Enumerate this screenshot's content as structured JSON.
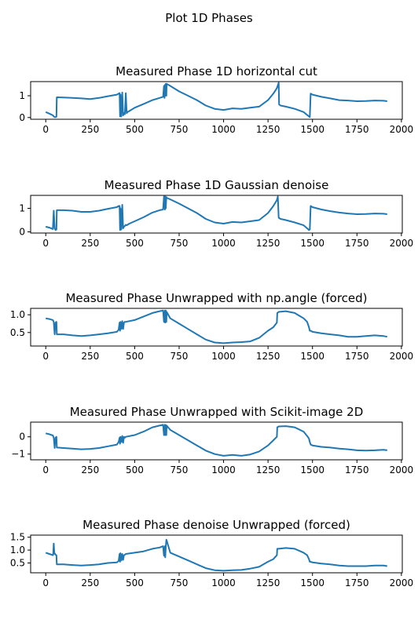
{
  "figure": {
    "suptitle": "Plot 1D Phases"
  },
  "style": {
    "line_color": "#1f77b4",
    "axis_color": "#000000",
    "background": "#ffffff"
  },
  "chart_data": [
    {
      "type": "line",
      "title": "Measured Phase 1D horizontal cut",
      "xlabel": "",
      "ylabel": "",
      "xlim": [
        -85,
        2005
      ],
      "ylim": [
        -0.08,
        1.65
      ],
      "xticks": [
        0,
        250,
        500,
        750,
        1000,
        1250,
        1500,
        1750,
        2000
      ],
      "yticks": [
        0,
        1
      ],
      "series": [
        {
          "x": [
            0,
            20,
            40,
            45,
            50,
            55,
            60,
            62,
            65,
            100,
            150,
            200,
            250,
            300,
            350,
            400,
            410,
            415,
            418,
            420,
            425,
            430,
            435,
            440,
            445,
            450,
            455,
            460,
            470,
            500,
            550,
            600,
            640,
            660,
            665,
            668,
            670,
            672,
            675,
            678,
            680,
            700,
            750,
            800,
            850,
            900,
            950,
            1000,
            1050,
            1100,
            1150,
            1200,
            1250,
            1280,
            1300,
            1310,
            1312,
            1320,
            1350,
            1400,
            1450,
            1470,
            1480,
            1485,
            1490,
            1500,
            1550,
            1600,
            1650,
            1700,
            1750,
            1800,
            1850,
            1900,
            1920
          ],
          "y": [
            0.25,
            0.18,
            0.1,
            0.05,
            0.02,
            0.02,
            0.03,
            0.93,
            0.93,
            0.92,
            0.9,
            0.88,
            0.85,
            0.9,
            0.98,
            1.05,
            1.1,
            1.12,
            0.05,
            1.05,
            0.05,
            1.15,
            0.1,
            0.2,
            0.15,
            1.12,
            0.2,
            0.25,
            0.3,
            0.45,
            0.62,
            0.8,
            0.9,
            0.95,
            1.45,
            0.9,
            1.5,
            1.0,
            1.55,
            1.0,
            1.55,
            1.45,
            1.2,
            1.0,
            0.8,
            0.55,
            0.4,
            0.35,
            0.42,
            0.4,
            0.45,
            0.5,
            0.8,
            1.1,
            1.35,
            1.6,
            0.6,
            0.55,
            0.5,
            0.4,
            0.25,
            0.12,
            0.05,
            0.02,
            1.1,
            1.05,
            0.95,
            0.88,
            0.8,
            0.78,
            0.75,
            0.76,
            0.78,
            0.77,
            0.75
          ]
        }
      ]
    },
    {
      "type": "line",
      "title": "Measured Phase 1D Gaussian denoise",
      "xlabel": "",
      "ylabel": "",
      "xlim": [
        -85,
        2005
      ],
      "ylim": [
        -0.05,
        1.55
      ],
      "xticks": [
        0,
        250,
        500,
        750,
        1000,
        1250,
        1500,
        1750,
        2000
      ],
      "yticks": [
        0,
        1
      ],
      "series": [
        {
          "x": [
            0,
            20,
            40,
            45,
            50,
            55,
            60,
            62,
            65,
            100,
            150,
            200,
            250,
            300,
            350,
            400,
            410,
            415,
            418,
            420,
            425,
            430,
            435,
            440,
            445,
            450,
            455,
            460,
            470,
            500,
            550,
            600,
            640,
            660,
            665,
            670,
            672,
            675,
            678,
            680,
            700,
            750,
            800,
            850,
            900,
            950,
            1000,
            1050,
            1100,
            1150,
            1200,
            1250,
            1280,
            1300,
            1305,
            1310,
            1320,
            1350,
            1400,
            1450,
            1470,
            1480,
            1485,
            1490,
            1500,
            1550,
            1600,
            1650,
            1700,
            1750,
            1800,
            1850,
            1900,
            1920
          ],
          "y": [
            0.22,
            0.18,
            0.12,
            0.9,
            0.15,
            0.08,
            0.1,
            0.92,
            0.92,
            0.92,
            0.9,
            0.85,
            0.85,
            0.9,
            0.98,
            1.05,
            1.1,
            1.1,
            0.08,
            1.0,
            0.1,
            1.15,
            0.15,
            0.22,
            0.25,
            0.3,
            0.28,
            0.3,
            0.35,
            0.45,
            0.62,
            0.82,
            0.92,
            0.95,
            1.5,
            0.95,
            1.5,
            1.0,
            1.48,
            1.45,
            1.38,
            1.2,
            1.0,
            0.8,
            0.55,
            0.4,
            0.35,
            0.42,
            0.4,
            0.45,
            0.5,
            0.8,
            1.1,
            1.35,
            1.5,
            0.6,
            0.55,
            0.5,
            0.4,
            0.28,
            0.15,
            0.08,
            0.1,
            1.1,
            1.05,
            0.95,
            0.88,
            0.82,
            0.78,
            0.75,
            0.76,
            0.78,
            0.77,
            0.75
          ]
        }
      ]
    },
    {
      "type": "line",
      "title": "Measured Phase Unwrapped with np.angle (forced)",
      "xlabel": "",
      "ylabel": "",
      "xlim": [
        -85,
        2005
      ],
      "ylim": [
        0.12,
        1.18
      ],
      "xticks": [
        0,
        250,
        500,
        750,
        1000,
        1250,
        1500,
        1750,
        2000
      ],
      "yticks": [
        0.5,
        1.0
      ],
      "series": [
        {
          "x": [
            0,
            20,
            40,
            45,
            50,
            55,
            60,
            62,
            65,
            100,
            150,
            200,
            250,
            300,
            350,
            400,
            410,
            415,
            418,
            420,
            425,
            430,
            435,
            440,
            445,
            450,
            500,
            550,
            600,
            640,
            660,
            665,
            670,
            672,
            675,
            678,
            680,
            700,
            750,
            800,
            850,
            900,
            950,
            1000,
            1050,
            1100,
            1150,
            1200,
            1250,
            1280,
            1300,
            1302,
            1310,
            1350,
            1400,
            1450,
            1470,
            1480,
            1485,
            1490,
            1500,
            1550,
            1600,
            1650,
            1700,
            1750,
            1800,
            1850,
            1900,
            1920
          ],
          "y": [
            0.9,
            0.88,
            0.85,
            0.8,
            0.45,
            0.78,
            0.8,
            0.45,
            0.45,
            0.45,
            0.42,
            0.4,
            0.42,
            0.45,
            0.48,
            0.52,
            0.58,
            0.78,
            0.55,
            0.8,
            0.6,
            0.82,
            0.6,
            0.78,
            0.8,
            0.8,
            0.85,
            0.95,
            1.05,
            1.1,
            1.12,
            0.8,
            1.12,
            0.78,
            1.12,
            0.8,
            1.08,
            0.9,
            0.75,
            0.6,
            0.45,
            0.3,
            0.22,
            0.2,
            0.22,
            0.23,
            0.25,
            0.35,
            0.55,
            0.65,
            0.78,
            1.05,
            1.08,
            1.1,
            1.05,
            0.9,
            0.8,
            0.65,
            0.55,
            0.55,
            0.52,
            0.48,
            0.45,
            0.42,
            0.38,
            0.38,
            0.4,
            0.42,
            0.4,
            0.38
          ]
        }
      ]
    },
    {
      "type": "line",
      "title": "Measured Phase Unwrapped with Scikit-image 2D",
      "xlabel": "",
      "ylabel": "",
      "xlim": [
        -85,
        2005
      ],
      "ylim": [
        -1.33,
        0.85
      ],
      "xticks": [
        0,
        250,
        500,
        750,
        1000,
        1250,
        1500,
        1750,
        2000
      ],
      "yticks": [
        -1,
        0
      ],
      "series": [
        {
          "x": [
            0,
            20,
            40,
            45,
            50,
            55,
            60,
            62,
            65,
            100,
            150,
            200,
            250,
            300,
            350,
            400,
            410,
            415,
            418,
            420,
            425,
            430,
            435,
            440,
            445,
            450,
            500,
            550,
            600,
            640,
            660,
            665,
            670,
            672,
            675,
            678,
            680,
            700,
            750,
            800,
            850,
            900,
            950,
            1000,
            1050,
            1100,
            1150,
            1200,
            1250,
            1280,
            1300,
            1302,
            1310,
            1350,
            1400,
            1450,
            1470,
            1480,
            1485,
            1490,
            1500,
            1550,
            1600,
            1650,
            1700,
            1750,
            1800,
            1850,
            1900,
            1920
          ],
          "y": [
            0.2,
            0.15,
            0.08,
            -0.05,
            -0.65,
            -0.05,
            0.0,
            -0.62,
            -0.62,
            -0.65,
            -0.68,
            -0.72,
            -0.7,
            -0.65,
            -0.55,
            -0.45,
            -0.3,
            -0.05,
            -0.4,
            0.0,
            -0.3,
            0.05,
            -0.35,
            0.0,
            -0.05,
            0.0,
            0.1,
            0.3,
            0.55,
            0.65,
            0.7,
            0.1,
            0.7,
            0.1,
            0.68,
            0.1,
            0.65,
            0.4,
            0.1,
            -0.2,
            -0.5,
            -0.8,
            -1.0,
            -1.1,
            -1.05,
            -1.1,
            -1.02,
            -0.85,
            -0.5,
            -0.2,
            0.0,
            0.55,
            0.6,
            0.62,
            0.55,
            0.3,
            0.05,
            -0.1,
            -0.3,
            -0.45,
            -0.5,
            -0.58,
            -0.62,
            -0.68,
            -0.72,
            -0.78,
            -0.8,
            -0.78,
            -0.75,
            -0.78
          ]
        }
      ]
    },
    {
      "type": "line",
      "title": "Measured Phase denoise Unwrapped (forced)",
      "xlabel": "",
      "ylabel": "",
      "xlim": [
        -85,
        2005
      ],
      "ylim": [
        0.12,
        1.58
      ],
      "xticks": [
        0,
        250,
        500,
        750,
        1000,
        1250,
        1500,
        1750,
        2000
      ],
      "yticks": [
        0.5,
        1.0,
        1.5
      ],
      "series": [
        {
          "x": [
            0,
            20,
            40,
            42,
            45,
            48,
            52,
            55,
            60,
            62,
            65,
            100,
            150,
            200,
            250,
            300,
            350,
            400,
            410,
            415,
            418,
            420,
            425,
            430,
            435,
            440,
            445,
            450,
            500,
            550,
            600,
            640,
            660,
            665,
            670,
            672,
            675,
            678,
            680,
            700,
            750,
            800,
            850,
            900,
            950,
            1000,
            1050,
            1100,
            1150,
            1200,
            1250,
            1280,
            1300,
            1302,
            1310,
            1350,
            1400,
            1450,
            1470,
            1480,
            1485,
            1490,
            1500,
            1550,
            1600,
            1650,
            1700,
            1750,
            1800,
            1850,
            1900,
            1920
          ],
          "y": [
            0.9,
            0.85,
            0.8,
            0.82,
            1.25,
            0.9,
            0.85,
            0.82,
            0.8,
            0.45,
            0.45,
            0.45,
            0.42,
            0.4,
            0.42,
            0.45,
            0.5,
            0.52,
            0.58,
            0.85,
            0.55,
            0.88,
            0.6,
            0.85,
            0.62,
            0.8,
            0.82,
            0.85,
            0.9,
            0.95,
            1.05,
            1.1,
            1.15,
            0.78,
            1.15,
            0.72,
            1.12,
            1.4,
            1.38,
            0.9,
            0.75,
            0.6,
            0.45,
            0.3,
            0.22,
            0.2,
            0.22,
            0.23,
            0.28,
            0.35,
            0.55,
            0.65,
            0.8,
            1.05,
            1.05,
            1.08,
            1.05,
            0.9,
            0.8,
            0.65,
            0.55,
            0.55,
            0.52,
            0.48,
            0.45,
            0.4,
            0.38,
            0.38,
            0.38,
            0.4,
            0.4,
            0.38
          ]
        }
      ]
    }
  ]
}
